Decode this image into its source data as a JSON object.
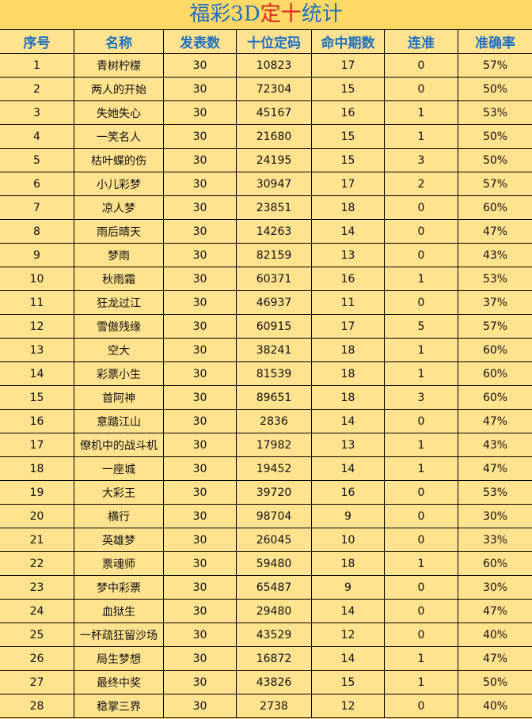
{
  "title": {
    "parts": [
      "福彩3D",
      "定十",
      "统计"
    ]
  },
  "table": {
    "headers": [
      "序号",
      "名称",
      "发表数",
      "十位定码",
      "命中期数",
      "连准",
      "准确率"
    ],
    "rows": [
      [
        "1",
        "青树柠檬",
        "30",
        "10823",
        "17",
        "0",
        "57%"
      ],
      [
        "2",
        "两人的开始",
        "30",
        "72304",
        "15",
        "0",
        "50%"
      ],
      [
        "3",
        "失她失心",
        "30",
        "45167",
        "16",
        "1",
        "53%"
      ],
      [
        "4",
        "一笑名人",
        "30",
        "21680",
        "15",
        "1",
        "50%"
      ],
      [
        "5",
        "枯叶蝶的伤",
        "30",
        "24195",
        "15",
        "3",
        "50%"
      ],
      [
        "6",
        "小儿彩梦",
        "30",
        "30947",
        "17",
        "2",
        "57%"
      ],
      [
        "7",
        "凉人梦",
        "30",
        "23851",
        "18",
        "0",
        "60%"
      ],
      [
        "8",
        "雨后晴天",
        "30",
        "14263",
        "14",
        "0",
        "47%"
      ],
      [
        "9",
        "梦雨",
        "30",
        "82159",
        "13",
        "0",
        "43%"
      ],
      [
        "10",
        "秋雨霜",
        "30",
        "60371",
        "16",
        "1",
        "53%"
      ],
      [
        "11",
        "狂龙过江",
        "30",
        "46937",
        "11",
        "0",
        "37%"
      ],
      [
        "12",
        "雪傲残缘",
        "30",
        "60915",
        "17",
        "5",
        "57%"
      ],
      [
        "13",
        "空大",
        "30",
        "38241",
        "18",
        "1",
        "60%"
      ],
      [
        "14",
        "彩票小生",
        "30",
        "81539",
        "18",
        "1",
        "60%"
      ],
      [
        "15",
        "首阿神",
        "30",
        "89651",
        "18",
        "3",
        "60%"
      ],
      [
        "16",
        "意踏江山",
        "30",
        "2836",
        "14",
        "0",
        "47%"
      ],
      [
        "17",
        "僚机中的战斗机",
        "30",
        "17982",
        "13",
        "1",
        "43%"
      ],
      [
        "18",
        "一座城",
        "30",
        "19452",
        "14",
        "1",
        "47%"
      ],
      [
        "19",
        "大彩王",
        "30",
        "39720",
        "16",
        "0",
        "53%"
      ],
      [
        "20",
        "横行",
        "30",
        "98704",
        "9",
        "0",
        "30%"
      ],
      [
        "21",
        "英雄梦",
        "30",
        "26045",
        "10",
        "0",
        "33%"
      ],
      [
        "22",
        "票魂师",
        "30",
        "59480",
        "18",
        "1",
        "60%"
      ],
      [
        "23",
        "梦中彩票",
        "30",
        "65487",
        "9",
        "0",
        "30%"
      ],
      [
        "24",
        "血狱生",
        "30",
        "29480",
        "14",
        "0",
        "47%"
      ],
      [
        "25",
        "一杯疏狂留沙场",
        "30",
        "43529",
        "12",
        "0",
        "40%"
      ],
      [
        "26",
        "局生梦想",
        "30",
        "16872",
        "14",
        "1",
        "47%"
      ],
      [
        "27",
        "最终中奖",
        "30",
        "43826",
        "15",
        "1",
        "50%"
      ],
      [
        "28",
        "稳掌三界",
        "30",
        "2738",
        "12",
        "0",
        "40%"
      ]
    ]
  }
}
